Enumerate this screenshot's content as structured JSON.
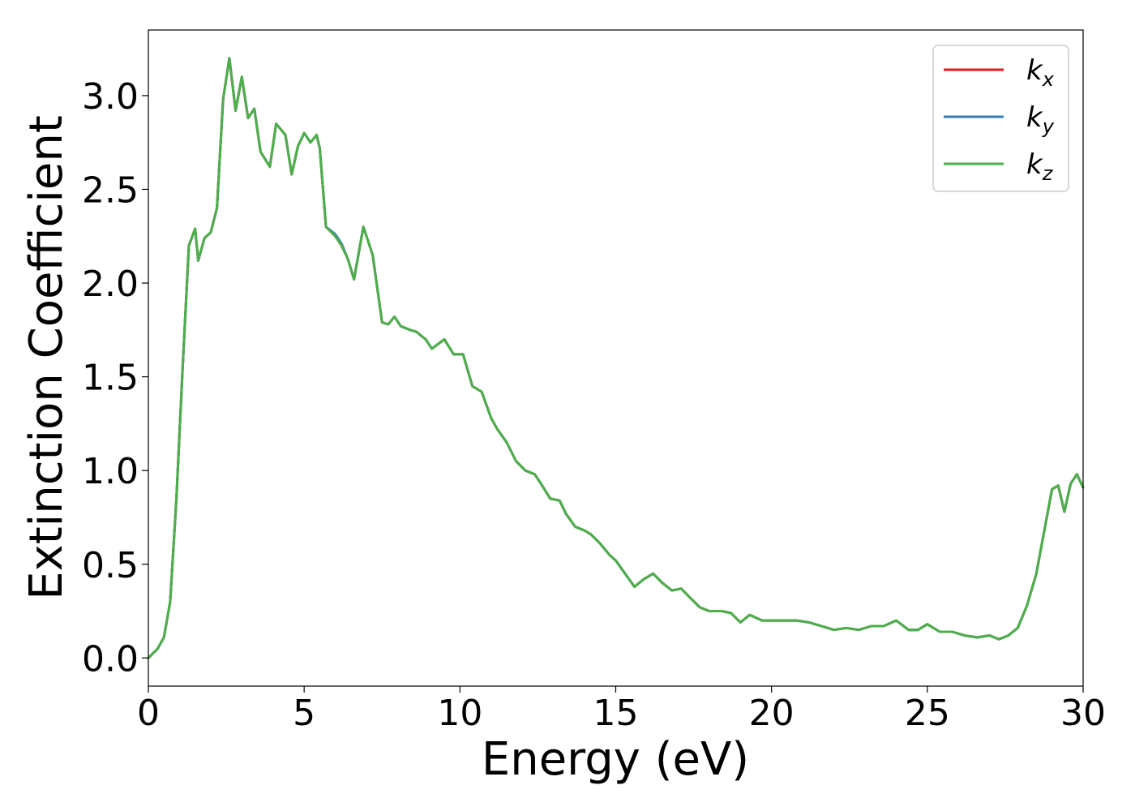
{
  "chart_data": {
    "type": "line",
    "xlabel": "Energy (eV)",
    "ylabel": "Extinction Coefficient",
    "xlim": [
      0,
      30
    ],
    "ylim": [
      -0.15,
      3.35
    ],
    "xticks": [
      0,
      5,
      10,
      15,
      20,
      25,
      30
    ],
    "xtick_labels": [
      "0",
      "5",
      "10",
      "15",
      "20",
      "25",
      "30"
    ],
    "yticks": [
      0.0,
      0.5,
      1.0,
      1.5,
      2.0,
      2.5,
      3.0
    ],
    "ytick_labels": [
      "0.0",
      "0.5",
      "1.0",
      "1.5",
      "2.0",
      "2.5",
      "3.0"
    ],
    "grid": false,
    "legend_position": "top-right",
    "series": [
      {
        "name": "k",
        "subscript": "x",
        "color": "#e41a1c",
        "x": [
          0,
          0.3,
          0.5,
          0.7,
          0.9,
          1.1,
          1.3,
          1.5,
          1.6,
          1.8,
          2.0,
          2.2,
          2.4,
          2.6,
          2.8,
          3.0,
          3.2,
          3.4,
          3.6,
          3.9,
          4.1,
          4.4,
          4.6,
          4.8,
          5.0,
          5.2,
          5.4,
          5.5,
          5.7,
          6.0,
          6.2,
          6.4,
          6.6,
          6.9,
          7.2,
          7.5,
          7.7,
          7.9,
          8.1,
          8.4,
          8.6,
          8.9,
          9.1,
          9.5,
          9.8,
          10.1,
          10.4,
          10.7,
          11.0,
          11.2,
          11.5,
          11.8,
          12.1,
          12.4,
          12.6,
          12.9,
          13.2,
          13.4,
          13.7,
          14.0,
          14.2,
          14.5,
          14.8,
          15.0,
          15.3,
          15.6,
          15.9,
          16.2,
          16.5,
          16.8,
          17.1,
          17.4,
          17.7,
          18.0,
          18.4,
          18.7,
          19.0,
          19.3,
          19.7,
          20.0,
          20.4,
          20.8,
          21.2,
          21.6,
          22.0,
          22.4,
          22.8,
          23.2,
          23.6,
          24.0,
          24.4,
          24.7,
          25.0,
          25.4,
          25.8,
          26.2,
          26.6,
          27.0,
          27.3,
          27.6,
          27.9,
          28.2,
          28.5,
          28.8,
          29.0,
          29.2,
          29.4,
          29.6,
          29.8,
          30.0
        ],
        "y": [
          0.0,
          0.05,
          0.11,
          0.3,
          0.85,
          1.55,
          2.2,
          2.29,
          2.12,
          2.24,
          2.27,
          2.4,
          2.98,
          3.2,
          2.92,
          3.1,
          2.88,
          2.93,
          2.7,
          2.62,
          2.85,
          2.79,
          2.58,
          2.73,
          2.8,
          2.75,
          2.79,
          2.72,
          2.3,
          2.25,
          2.2,
          2.13,
          2.02,
          2.3,
          2.15,
          1.79,
          1.78,
          1.82,
          1.77,
          1.75,
          1.74,
          1.7,
          1.65,
          1.7,
          1.62,
          1.62,
          1.45,
          1.42,
          1.28,
          1.22,
          1.15,
          1.05,
          1.0,
          0.98,
          0.93,
          0.85,
          0.84,
          0.77,
          0.7,
          0.68,
          0.66,
          0.61,
          0.55,
          0.52,
          0.45,
          0.38,
          0.42,
          0.45,
          0.4,
          0.36,
          0.37,
          0.32,
          0.27,
          0.25,
          0.25,
          0.24,
          0.19,
          0.23,
          0.2,
          0.2,
          0.2,
          0.2,
          0.19,
          0.17,
          0.15,
          0.16,
          0.15,
          0.17,
          0.17,
          0.2,
          0.15,
          0.15,
          0.18,
          0.14,
          0.14,
          0.12,
          0.11,
          0.12,
          0.1,
          0.12,
          0.16,
          0.28,
          0.45,
          0.72,
          0.9,
          0.92,
          0.78,
          0.93,
          0.98,
          0.91
        ]
      },
      {
        "name": "k",
        "subscript": "y",
        "color": "#377eb8",
        "x": [
          0,
          0.3,
          0.5,
          0.7,
          0.9,
          1.1,
          1.3,
          1.5,
          1.6,
          1.8,
          2.0,
          2.2,
          2.4,
          2.6,
          2.8,
          3.0,
          3.2,
          3.4,
          3.6,
          3.9,
          4.1,
          4.4,
          4.6,
          4.8,
          5.0,
          5.2,
          5.4,
          5.5,
          5.7,
          6.0,
          6.2,
          6.4,
          6.6,
          6.9,
          7.2,
          7.5,
          7.7,
          7.9,
          8.1,
          8.4,
          8.6,
          8.9,
          9.1,
          9.5,
          9.8,
          10.1,
          10.4,
          10.7,
          11.0,
          11.2,
          11.5,
          11.8,
          12.1,
          12.4,
          12.6,
          12.9,
          13.2,
          13.4,
          13.7,
          14.0,
          14.2,
          14.5,
          14.8,
          15.0,
          15.3,
          15.6,
          15.9,
          16.2,
          16.5,
          16.8,
          17.1,
          17.4,
          17.7,
          18.0,
          18.4,
          18.7,
          19.0,
          19.3,
          19.7,
          20.0,
          20.4,
          20.8,
          21.2,
          21.6,
          22.0,
          22.4,
          22.8,
          23.2,
          23.6,
          24.0,
          24.4,
          24.7,
          25.0,
          25.4,
          25.8,
          26.2,
          26.6,
          27.0,
          27.3,
          27.6,
          27.9,
          28.2,
          28.5,
          28.8,
          29.0,
          29.2,
          29.4,
          29.6,
          29.8,
          30.0
        ],
        "y": [
          0.0,
          0.05,
          0.11,
          0.3,
          0.85,
          1.55,
          2.2,
          2.29,
          2.12,
          2.24,
          2.27,
          2.4,
          2.98,
          3.2,
          2.92,
          3.1,
          2.88,
          2.93,
          2.7,
          2.62,
          2.85,
          2.79,
          2.58,
          2.73,
          2.8,
          2.75,
          2.79,
          2.72,
          2.3,
          2.26,
          2.21,
          2.13,
          2.02,
          2.3,
          2.15,
          1.79,
          1.78,
          1.82,
          1.77,
          1.75,
          1.74,
          1.7,
          1.65,
          1.7,
          1.62,
          1.62,
          1.45,
          1.42,
          1.28,
          1.22,
          1.15,
          1.05,
          1.0,
          0.98,
          0.93,
          0.85,
          0.84,
          0.77,
          0.7,
          0.68,
          0.66,
          0.61,
          0.55,
          0.52,
          0.45,
          0.38,
          0.42,
          0.45,
          0.4,
          0.36,
          0.37,
          0.32,
          0.27,
          0.25,
          0.25,
          0.24,
          0.19,
          0.23,
          0.2,
          0.2,
          0.2,
          0.2,
          0.19,
          0.17,
          0.15,
          0.16,
          0.15,
          0.17,
          0.17,
          0.2,
          0.15,
          0.15,
          0.18,
          0.14,
          0.14,
          0.12,
          0.11,
          0.12,
          0.1,
          0.12,
          0.16,
          0.28,
          0.45,
          0.72,
          0.9,
          0.92,
          0.78,
          0.93,
          0.98,
          0.91
        ]
      },
      {
        "name": "k",
        "subscript": "z",
        "color": "#4daf4a",
        "x": [
          0,
          0.3,
          0.5,
          0.7,
          0.9,
          1.1,
          1.3,
          1.5,
          1.6,
          1.8,
          2.0,
          2.2,
          2.4,
          2.6,
          2.8,
          3.0,
          3.2,
          3.4,
          3.6,
          3.9,
          4.1,
          4.4,
          4.6,
          4.8,
          5.0,
          5.2,
          5.4,
          5.5,
          5.7,
          6.0,
          6.2,
          6.4,
          6.6,
          6.9,
          7.2,
          7.5,
          7.7,
          7.9,
          8.1,
          8.4,
          8.6,
          8.9,
          9.1,
          9.5,
          9.8,
          10.1,
          10.4,
          10.7,
          11.0,
          11.2,
          11.5,
          11.8,
          12.1,
          12.4,
          12.6,
          12.9,
          13.2,
          13.4,
          13.7,
          14.0,
          14.2,
          14.5,
          14.8,
          15.0,
          15.3,
          15.6,
          15.9,
          16.2,
          16.5,
          16.8,
          17.1,
          17.4,
          17.7,
          18.0,
          18.4,
          18.7,
          19.0,
          19.3,
          19.7,
          20.0,
          20.4,
          20.8,
          21.2,
          21.6,
          22.0,
          22.4,
          22.8,
          23.2,
          23.6,
          24.0,
          24.4,
          24.7,
          25.0,
          25.4,
          25.8,
          26.2,
          26.6,
          27.0,
          27.3,
          27.6,
          27.9,
          28.2,
          28.5,
          28.8,
          29.0,
          29.2,
          29.4,
          29.6,
          29.8,
          30.0
        ],
        "y": [
          0.0,
          0.05,
          0.11,
          0.3,
          0.85,
          1.55,
          2.2,
          2.29,
          2.12,
          2.24,
          2.27,
          2.4,
          2.98,
          3.2,
          2.92,
          3.1,
          2.88,
          2.93,
          2.7,
          2.62,
          2.85,
          2.79,
          2.58,
          2.73,
          2.8,
          2.75,
          2.79,
          2.72,
          2.3,
          2.25,
          2.2,
          2.13,
          2.02,
          2.3,
          2.15,
          1.79,
          1.78,
          1.82,
          1.77,
          1.75,
          1.74,
          1.7,
          1.65,
          1.7,
          1.62,
          1.62,
          1.45,
          1.42,
          1.28,
          1.22,
          1.15,
          1.05,
          1.0,
          0.98,
          0.93,
          0.85,
          0.84,
          0.77,
          0.7,
          0.68,
          0.66,
          0.61,
          0.55,
          0.52,
          0.45,
          0.38,
          0.42,
          0.45,
          0.4,
          0.36,
          0.37,
          0.32,
          0.27,
          0.25,
          0.25,
          0.24,
          0.19,
          0.23,
          0.2,
          0.2,
          0.2,
          0.2,
          0.19,
          0.17,
          0.15,
          0.16,
          0.15,
          0.17,
          0.17,
          0.2,
          0.15,
          0.15,
          0.18,
          0.14,
          0.14,
          0.12,
          0.11,
          0.12,
          0.1,
          0.12,
          0.16,
          0.28,
          0.45,
          0.72,
          0.9,
          0.92,
          0.78,
          0.93,
          0.98,
          0.91
        ]
      }
    ]
  }
}
